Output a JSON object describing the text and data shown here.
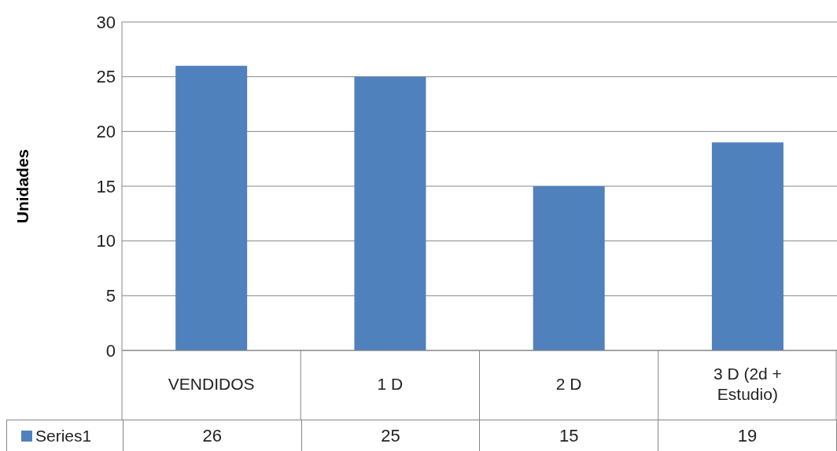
{
  "chart_data": {
    "type": "bar",
    "ylabel": "Unidades",
    "categories": [
      "VENDIDOS",
      "1 D",
      "2 D",
      "3 D (2d + Estudio)"
    ],
    "series": [
      {
        "name": "Series1",
        "color": "#4f81bd",
        "values": [
          26,
          25,
          15,
          19
        ]
      }
    ],
    "ylim": [
      0,
      30
    ],
    "yticks": [
      0,
      5,
      10,
      15,
      20,
      25,
      30
    ],
    "grid": "y",
    "data_labels": true,
    "legend": "bottom left"
  }
}
